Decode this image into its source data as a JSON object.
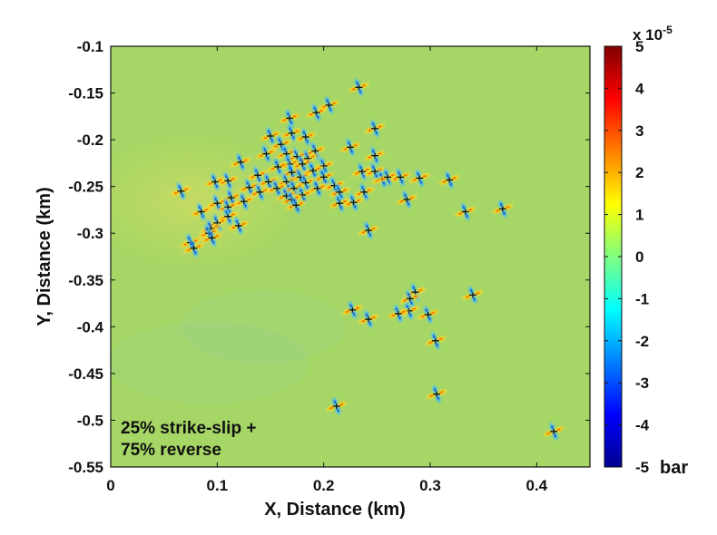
{
  "chart_data": {
    "type": "heatmap",
    "title": "",
    "xlabel": "X, Distance (km)",
    "ylabel": "Y, Distance (km)",
    "xlim": [
      0,
      0.45
    ],
    "ylim": [
      -0.55,
      -0.1
    ],
    "xticks": [
      "0",
      "0.1",
      "0.2",
      "0.3",
      "0.4"
    ],
    "yticks": [
      "-0.1",
      "-0.15",
      "-0.2",
      "-0.25",
      "-0.3",
      "-0.35",
      "-0.4",
      "-0.45",
      "-0.5",
      "-0.55"
    ],
    "colorbar": {
      "range": [
        -5,
        5
      ],
      "ticks": [
        "5",
        "4",
        "3",
        "2",
        "1",
        "0",
        "-1",
        "-2",
        "-3",
        "-4",
        "-5"
      ],
      "multiplier": "x 10",
      "exponent": "-5",
      "unit": "bar",
      "colormap": "jet"
    },
    "annotation": [
      "25% strike-slip +",
      "75% reverse"
    ],
    "grid": false,
    "background_color": "#a6d665",
    "marker_color": "#111111",
    "events": [
      {
        "x": 0.233,
        "y": -0.144
      },
      {
        "x": 0.205,
        "y": -0.163
      },
      {
        "x": 0.193,
        "y": -0.171
      },
      {
        "x": 0.168,
        "y": -0.177
      },
      {
        "x": 0.248,
        "y": -0.188
      },
      {
        "x": 0.15,
        "y": -0.196
      },
      {
        "x": 0.17,
        "y": -0.193
      },
      {
        "x": 0.183,
        "y": -0.197
      },
      {
        "x": 0.16,
        "y": -0.205
      },
      {
        "x": 0.225,
        "y": -0.208
      },
      {
        "x": 0.192,
        "y": -0.212
      },
      {
        "x": 0.146,
        "y": -0.215
      },
      {
        "x": 0.165,
        "y": -0.215
      },
      {
        "x": 0.175,
        "y": -0.218
      },
      {
        "x": 0.185,
        "y": -0.22
      },
      {
        "x": 0.248,
        "y": -0.217
      },
      {
        "x": 0.122,
        "y": -0.224
      },
      {
        "x": 0.168,
        "y": -0.226
      },
      {
        "x": 0.18,
        "y": -0.226
      },
      {
        "x": 0.157,
        "y": -0.229
      },
      {
        "x": 0.2,
        "y": -0.228
      },
      {
        "x": 0.17,
        "y": -0.235
      },
      {
        "x": 0.19,
        "y": -0.233
      },
      {
        "x": 0.236,
        "y": -0.234
      },
      {
        "x": 0.248,
        "y": -0.234
      },
      {
        "x": 0.138,
        "y": -0.238
      },
      {
        "x": 0.178,
        "y": -0.24
      },
      {
        "x": 0.2,
        "y": -0.24
      },
      {
        "x": 0.255,
        "y": -0.242
      },
      {
        "x": 0.26,
        "y": -0.24
      },
      {
        "x": 0.272,
        "y": -0.24
      },
      {
        "x": 0.29,
        "y": -0.241
      },
      {
        "x": 0.318,
        "y": -0.243
      },
      {
        "x": 0.11,
        "y": -0.244
      },
      {
        "x": 0.098,
        "y": -0.245
      },
      {
        "x": 0.148,
        "y": -0.245
      },
      {
        "x": 0.165,
        "y": -0.245
      },
      {
        "x": 0.183,
        "y": -0.246
      },
      {
        "x": 0.21,
        "y": -0.249
      },
      {
        "x": 0.13,
        "y": -0.251
      },
      {
        "x": 0.156,
        "y": -0.252
      },
      {
        "x": 0.172,
        "y": -0.252
      },
      {
        "x": 0.194,
        "y": -0.252
      },
      {
        "x": 0.066,
        "y": -0.255
      },
      {
        "x": 0.14,
        "y": -0.256
      },
      {
        "x": 0.215,
        "y": -0.256
      },
      {
        "x": 0.238,
        "y": -0.256
      },
      {
        "x": 0.165,
        "y": -0.26
      },
      {
        "x": 0.18,
        "y": -0.259
      },
      {
        "x": 0.113,
        "y": -0.262
      },
      {
        "x": 0.17,
        "y": -0.264
      },
      {
        "x": 0.278,
        "y": -0.264
      },
      {
        "x": 0.125,
        "y": -0.266
      },
      {
        "x": 0.228,
        "y": -0.267
      },
      {
        "x": 0.215,
        "y": -0.268
      },
      {
        "x": 0.1,
        "y": -0.268
      },
      {
        "x": 0.174,
        "y": -0.27
      },
      {
        "x": 0.11,
        "y": -0.272
      },
      {
        "x": 0.368,
        "y": -0.274
      },
      {
        "x": 0.085,
        "y": -0.277
      },
      {
        "x": 0.333,
        "y": -0.277
      },
      {
        "x": 0.11,
        "y": -0.282
      },
      {
        "x": 0.1,
        "y": -0.289
      },
      {
        "x": 0.12,
        "y": -0.292
      },
      {
        "x": 0.094,
        "y": -0.295
      },
      {
        "x": 0.242,
        "y": -0.297
      },
      {
        "x": 0.092,
        "y": -0.3
      },
      {
        "x": 0.095,
        "y": -0.305
      },
      {
        "x": 0.075,
        "y": -0.31
      },
      {
        "x": 0.078,
        "y": -0.316
      },
      {
        "x": 0.286,
        "y": -0.363
      },
      {
        "x": 0.34,
        "y": -0.366
      },
      {
        "x": 0.281,
        "y": -0.37
      },
      {
        "x": 0.227,
        "y": -0.382
      },
      {
        "x": 0.28,
        "y": -0.383
      },
      {
        "x": 0.27,
        "y": -0.386
      },
      {
        "x": 0.298,
        "y": -0.387
      },
      {
        "x": 0.242,
        "y": -0.392
      },
      {
        "x": 0.305,
        "y": -0.415
      },
      {
        "x": 0.306,
        "y": -0.472
      },
      {
        "x": 0.212,
        "y": -0.485
      },
      {
        "x": 0.416,
        "y": -0.512
      }
    ]
  }
}
